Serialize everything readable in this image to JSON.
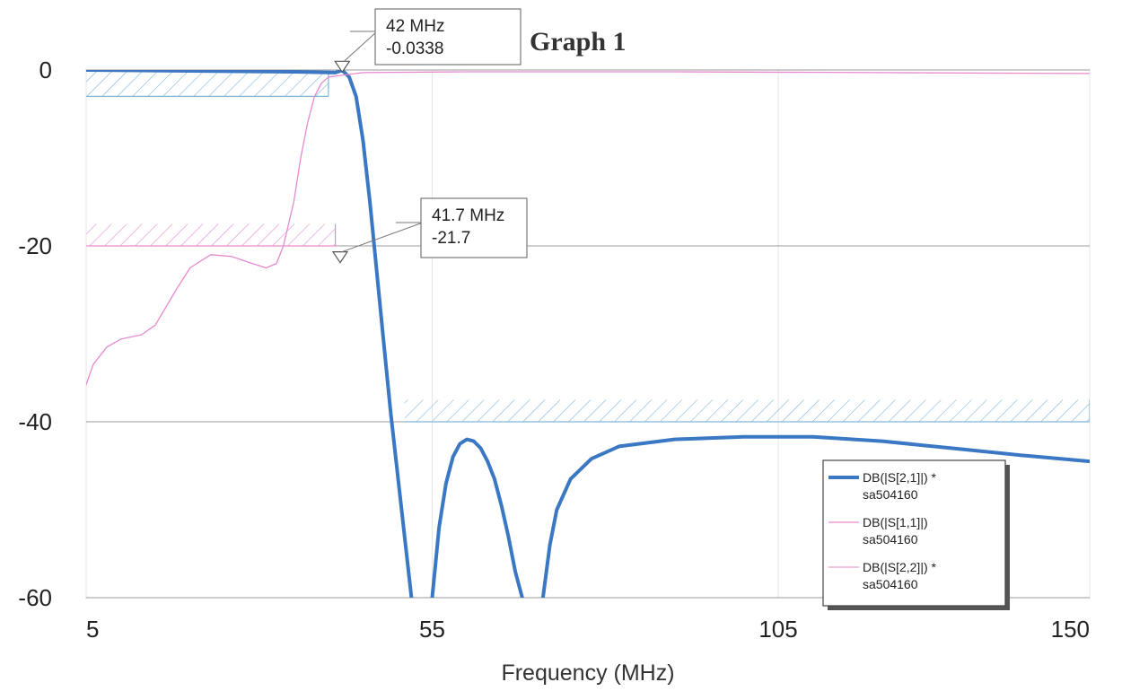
{
  "chart_data": {
    "type": "line",
    "title": "Graph 1",
    "xlabel": "Frequency (MHz)",
    "ylabel": "",
    "xlim": [
      5,
      150
    ],
    "ylim": [
      -60,
      0
    ],
    "xticks": [
      5,
      55,
      105,
      150
    ],
    "yticks": [
      0,
      -20,
      -40,
      -60
    ],
    "grid": true,
    "legend_position": "bottom-right",
    "series": [
      {
        "name": "DB(|S[2,1]|) *\nsa504160",
        "name_lines": [
          "DB(|S[2,1]|) *",
          "sa504160"
        ],
        "color": "#3a78c4",
        "segments": [
          [
            [
              5,
              0
            ],
            [
              20,
              -0.1
            ],
            [
              35,
              -0.2
            ],
            [
              41,
              -0.3
            ],
            [
              42,
              -0.0338
            ],
            [
              43,
              -0.8
            ],
            [
              44,
              -3
            ],
            [
              45,
              -8
            ],
            [
              46,
              -15
            ],
            [
              47,
              -23
            ],
            [
              48,
              -31
            ],
            [
              49,
              -39
            ],
            [
              50,
              -46
            ],
            [
              51,
              -53
            ],
            [
              52,
              -60
            ]
          ],
          [
            [
              55,
              -60
            ],
            [
              56,
              -52
            ],
            [
              57,
              -47
            ],
            [
              58,
              -44
            ],
            [
              59,
              -42.5
            ],
            [
              60,
              -42
            ],
            [
              61,
              -42.2
            ],
            [
              62,
              -43
            ],
            [
              63,
              -44.5
            ],
            [
              64,
              -46.5
            ],
            [
              65,
              -49.5
            ],
            [
              66,
              -53
            ],
            [
              67,
              -57
            ],
            [
              68,
              -60
            ]
          ],
          [
            [
              71,
              -60
            ],
            [
              72,
              -54
            ],
            [
              73,
              -50
            ],
            [
              75,
              -46.5
            ],
            [
              78,
              -44.2
            ],
            [
              82,
              -42.8
            ],
            [
              90,
              -42
            ],
            [
              100,
              -41.7
            ],
            [
              110,
              -41.7
            ],
            [
              120,
              -42.2
            ],
            [
              130,
              -43
            ],
            [
              140,
              -43.8
            ],
            [
              150,
              -44.5
            ]
          ]
        ]
      },
      {
        "name": "DB(|S[1,1]|)\nsa504160",
        "name_lines": [
          "DB(|S[1,1]|)",
          "sa504160"
        ],
        "color": "#e68ad0",
        "segments": [
          [
            [
              5,
              -35.8
            ],
            [
              6,
              -33.5
            ],
            [
              8,
              -31.5
            ],
            [
              10,
              -30.6
            ],
            [
              13,
              -30.1
            ],
            [
              15,
              -29
            ],
            [
              18,
              -25
            ],
            [
              20,
              -22.5
            ],
            [
              23,
              -21
            ],
            [
              26,
              -21.2
            ],
            [
              29,
              -22
            ],
            [
              31,
              -22.5
            ],
            [
              32.5,
              -22
            ],
            [
              33.5,
              -20
            ],
            [
              35,
              -15
            ],
            [
              36,
              -10
            ],
            [
              37,
              -6
            ],
            [
              38,
              -3
            ],
            [
              39,
              -1.5
            ],
            [
              40,
              -0.8
            ],
            [
              45,
              -0.3
            ],
            [
              60,
              -0.2
            ],
            [
              90,
              -0.2
            ],
            [
              120,
              -0.3
            ],
            [
              150,
              -0.4
            ]
          ]
        ]
      },
      {
        "name": "DB(|S[2,2]|) *\nsa504160",
        "name_lines": [
          "DB(|S[2,2]|) *",
          "sa504160"
        ],
        "color": "#f2a0d2",
        "segments": []
      }
    ],
    "specs": [
      {
        "color": "#7fb6d6",
        "x": [
          5,
          40
        ],
        "y": 0,
        "y_limit": -3
      },
      {
        "color": "#e68ad0",
        "x": [
          5,
          41
        ],
        "y": -20,
        "y_limit": -17.5
      },
      {
        "color": "#7fb6d6",
        "x": [
          51,
          150
        ],
        "y": -40,
        "y_limit": -37.5
      }
    ],
    "markers": [
      {
        "x": 42,
        "y": -0.0338,
        "line1": "42 MHz",
        "line2": "-0.0338"
      },
      {
        "x": 41.7,
        "y": -21.7,
        "line1": "41.7 MHz",
        "line2": "-21.7"
      }
    ]
  }
}
